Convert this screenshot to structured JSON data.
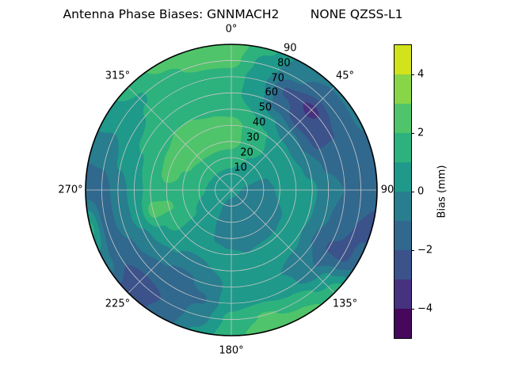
{
  "title": "Antenna Phase Biases: GNNMACH2        NONE QZSS-L1",
  "chart_data": {
    "type": "polar_contour",
    "title": "Antenna Phase Biases: GNNMACH2        NONE QZSS-L1",
    "angular_ticks": [
      {
        "deg": 0,
        "label": "0°"
      },
      {
        "deg": 45,
        "label": "45°"
      },
      {
        "deg": 90,
        "label": "90"
      },
      {
        "deg": 135,
        "label": "135°"
      },
      {
        "deg": 180,
        "label": "180°"
      },
      {
        "deg": 225,
        "label": "225°"
      },
      {
        "deg": 270,
        "label": "270°"
      },
      {
        "deg": 315,
        "label": "315°"
      }
    ],
    "radial_ticks": [
      "10",
      "20",
      "30",
      "40",
      "50",
      "60",
      "70",
      "80",
      "90"
    ],
    "radial_label_angle_deg": 22.5,
    "zenith_max_deg": 90,
    "grid_color": "#c6c6c6",
    "outline_color": "#000000",
    "colorbar": {
      "label": "Bias (mm)",
      "vmin": -5,
      "vmax": 5,
      "levels": [
        -5,
        -4,
        -3,
        -2,
        -1,
        0,
        1,
        2,
        3,
        4,
        5
      ],
      "tick_values": [
        -4,
        -2,
        0,
        2,
        4
      ],
      "tick_labels": [
        "−4",
        "−2",
        "0",
        "2",
        "4"
      ],
      "colors": [
        "#46085c",
        "#46327e",
        "#3b528b",
        "#31688e",
        "#287d8e",
        "#1f998a",
        "#2db27d",
        "#50c46a",
        "#89d548",
        "#d2e21b"
      ]
    },
    "field": {
      "azimuth_step_deg": 15,
      "zenith_step_deg": 10,
      "comment_units": "bias mm; rows=azimuth 0..345 clockwise from north; cols=zenith 0..90",
      "values": [
        [
          0.3,
          0.8,
          1.5,
          2.4,
          2.5,
          1.6,
          1.3,
          1.6,
          2.3,
          2.6
        ],
        [
          0.3,
          0.7,
          1.2,
          1.9,
          1.8,
          1.0,
          0.4,
          0.2,
          0.6,
          1.2
        ],
        [
          0.3,
          0.5,
          0.9,
          1.4,
          1.1,
          0.1,
          -1.6,
          -2.2,
          -0.8,
          -0.3
        ],
        [
          0.3,
          0.4,
          0.6,
          0.8,
          0.4,
          -0.8,
          -2.6,
          -3.3,
          -1.7,
          -0.9
        ],
        [
          0.3,
          0.2,
          0.3,
          0.5,
          0.2,
          -1.0,
          -2.3,
          -2.1,
          -1.3,
          -0.9
        ],
        [
          0.3,
          0.0,
          -0.1,
          0.2,
          0.3,
          -0.2,
          -1.1,
          -1.3,
          -1.1,
          -1.2
        ],
        [
          0.3,
          -0.2,
          -0.3,
          0.1,
          0.4,
          0.2,
          -0.7,
          -1.0,
          -1.3,
          -1.6
        ],
        [
          0.3,
          -0.3,
          -0.4,
          0.0,
          0.3,
          0.1,
          -0.9,
          -1.3,
          -2.0,
          -2.3
        ],
        [
          0.3,
          -0.3,
          -0.5,
          -0.2,
          0.2,
          0.0,
          -1.1,
          -2.1,
          -2.3,
          -1.5
        ],
        [
          0.3,
          -0.4,
          -0.5,
          -0.3,
          0.1,
          0.3,
          -0.6,
          -0.9,
          0.6,
          1.7
        ],
        [
          0.3,
          -0.4,
          -0.6,
          -0.4,
          0.1,
          0.4,
          0.0,
          0.4,
          1.7,
          2.4
        ],
        [
          0.3,
          -0.4,
          -0.6,
          -0.4,
          0.0,
          0.4,
          0.4,
          0.9,
          2.1,
          2.7
        ],
        [
          0.3,
          -0.3,
          -0.5,
          -0.3,
          0.1,
          0.4,
          0.3,
          0.7,
          1.3,
          1.7
        ],
        [
          0.3,
          -0.2,
          -0.3,
          -0.1,
          0.2,
          0.0,
          -0.8,
          -1.1,
          -0.5,
          0.1
        ],
        [
          0.3,
          0.0,
          0.1,
          0.2,
          0.4,
          -0.3,
          -1.2,
          -1.5,
          -1.9,
          -1.7
        ],
        [
          0.3,
          0.2,
          0.4,
          0.6,
          0.6,
          0.1,
          -0.9,
          -1.5,
          -2.7,
          -2.5
        ],
        [
          0.3,
          0.4,
          0.8,
          1.2,
          1.3,
          0.8,
          -0.3,
          -1.1,
          -1.7,
          -0.5
        ],
        [
          0.3,
          0.5,
          1.0,
          1.6,
          2.1,
          2.4,
          0.4,
          -0.7,
          -1.4,
          1.2
        ],
        [
          0.3,
          0.6,
          1.2,
          1.7,
          1.8,
          1.4,
          0.5,
          -0.6,
          -1.4,
          -1.4
        ],
        [
          0.3,
          0.7,
          1.3,
          1.9,
          2.3,
          1.6,
          0.8,
          0.2,
          -0.8,
          -0.9
        ],
        [
          0.3,
          0.8,
          1.4,
          2.1,
          2.4,
          1.8,
          1.2,
          0.7,
          0.2,
          0.5
        ],
        [
          0.3,
          0.8,
          1.5,
          2.3,
          2.5,
          2.0,
          1.5,
          1.1,
          0.9,
          1.4
        ],
        [
          0.3,
          0.8,
          1.5,
          2.4,
          2.6,
          2.0,
          1.5,
          1.4,
          1.8,
          2.3
        ],
        [
          0.3,
          0.8,
          1.5,
          2.4,
          2.6,
          1.8,
          1.4,
          1.6,
          2.2,
          2.7
        ]
      ]
    }
  }
}
